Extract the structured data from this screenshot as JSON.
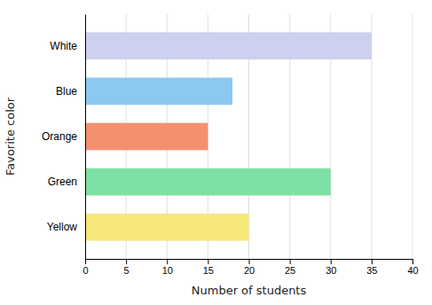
{
  "chart_data": {
    "type": "bar",
    "orientation": "horizontal",
    "categories": [
      "White",
      "Blue",
      "Orange",
      "Green",
      "Yellow"
    ],
    "values": [
      35,
      18,
      15,
      30,
      20
    ],
    "colors": [
      "#cdd0ee",
      "#8dc8f0",
      "#f49070",
      "#7de0a4",
      "#f7e87a"
    ],
    "xlabel": "Number of students",
    "ylabel": "Favorite color",
    "xlim": [
      0,
      40
    ],
    "xticks": [
      0,
      5,
      10,
      15,
      20,
      25,
      30,
      35,
      40
    ],
    "grid": true
  }
}
